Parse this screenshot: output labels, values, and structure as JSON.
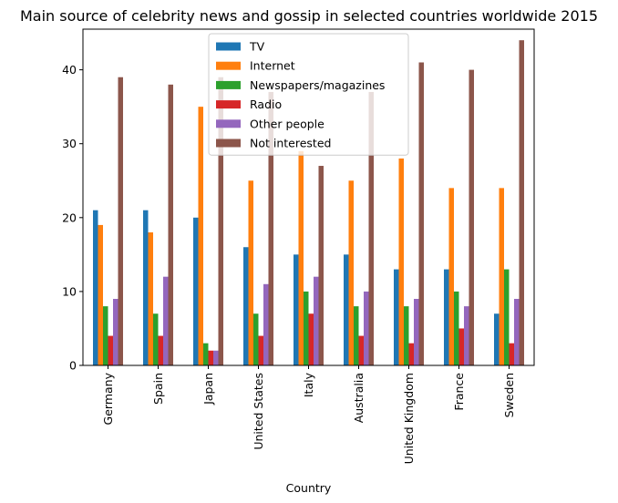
{
  "chart_data": {
    "type": "bar",
    "title": "Main source of celebrity news and gossip in selected countries worldwide 2015",
    "xlabel": "Country",
    "ylabel": "",
    "ylim": [
      0,
      45.5
    ],
    "yticks": [
      0,
      10,
      20,
      30,
      40
    ],
    "grid": false,
    "legend_position": "top-center",
    "categories": [
      "Germany",
      "Spain",
      "Japan",
      "United States",
      "Italy",
      "Australia",
      "United Kingdom",
      "France",
      "Sweden"
    ],
    "series": [
      {
        "name": "TV",
        "color": "#1f77b4",
        "values": [
          21,
          21,
          20,
          16,
          15,
          15,
          13,
          13,
          7
        ]
      },
      {
        "name": "Internet",
        "color": "#ff7f0e",
        "values": [
          19,
          18,
          35,
          25,
          29,
          25,
          28,
          24,
          24
        ]
      },
      {
        "name": "Newspapers/magazines",
        "color": "#2ca02c",
        "values": [
          8,
          7,
          3,
          7,
          10,
          8,
          8,
          10,
          13
        ]
      },
      {
        "name": "Radio",
        "color": "#d62728",
        "values": [
          4,
          4,
          2,
          4,
          7,
          4,
          3,
          5,
          3
        ]
      },
      {
        "name": "Other people",
        "color": "#9467bd",
        "values": [
          9,
          12,
          2,
          11,
          12,
          10,
          9,
          8,
          9
        ]
      },
      {
        "name": "Not interested",
        "color": "#8c564b",
        "values": [
          39,
          38,
          39,
          37,
          27,
          37,
          41,
          40,
          44
        ]
      }
    ]
  }
}
